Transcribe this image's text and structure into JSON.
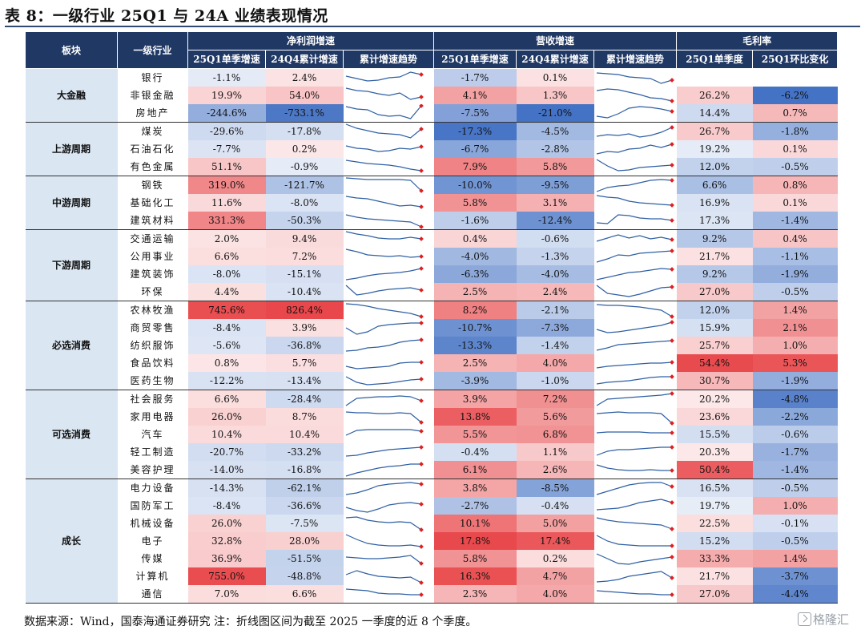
{
  "title": "表 8：一级行业 25Q1 与 24A 业绩表现情况",
  "header": {
    "sector": "板块",
    "industry": "一级行业",
    "profit_group": "净利润增速",
    "revenue_group": "营收增速",
    "margin_group": "毛利率",
    "sub": {
      "p_q1": "25Q1单季增速",
      "p_q4": "24Q4累计增速",
      "p_trend": "累计增速趋势",
      "r_q1": "25Q1单季增速",
      "r_q4": "24Q4累计增速",
      "r_trend": "累计增速趋势",
      "m_q1": "25Q1单季度",
      "m_chg": "25Q1环比变化"
    }
  },
  "colors": {
    "header_bg": "#203864",
    "sector_bg": "#dae6f2",
    "negative": "#4472c4",
    "positive": "#e8484b",
    "spark_line": "#2e5fa3",
    "spark_end": "#e02020"
  },
  "sectors": [
    {
      "name": "大金融",
      "rows": [
        {
          "ind": "银行",
          "p1": -1.1,
          "p2": 2.4,
          "ps": [
            0.6,
            0.45,
            0.3,
            0.35,
            0.5,
            0.55,
            0.85,
            0.7
          ],
          "r1": -1.7,
          "r2": 0.1,
          "rs": [
            0.8,
            0.75,
            0.7,
            0.55,
            0.5,
            0.45,
            0.15,
            0.35
          ],
          "m1": null,
          "m2": null
        },
        {
          "ind": "非银金融",
          "p1": 19.9,
          "p2": 54.0,
          "ps": [
            0.95,
            0.8,
            0.75,
            0.6,
            0.5,
            0.65,
            0.25,
            0.4
          ],
          "r1": 4.1,
          "r2": 1.3,
          "rs": [
            0.8,
            0.9,
            0.85,
            0.7,
            0.55,
            0.35,
            0.3,
            0.15
          ],
          "m1": 26.2,
          "m2": -6.2
        },
        {
          "ind": "房地产",
          "p1": -244.6,
          "p2": -733.1,
          "ps": [
            0.9,
            0.75,
            0.7,
            0.4,
            0.3,
            0.35,
            0.15,
            0.95
          ],
          "r1": -7.5,
          "r2": -21.0,
          "rs": [
            0.3,
            0.2,
            0.45,
            0.8,
            0.9,
            0.85,
            0.75,
            0.6
          ],
          "m1": 14.4,
          "m2": 0.7
        }
      ]
    },
    {
      "name": "上游周期",
      "rows": [
        {
          "ind": "煤炭",
          "p1": -29.6,
          "p2": -17.8,
          "ps": [
            0.95,
            0.7,
            0.55,
            0.4,
            0.35,
            0.3,
            0.1,
            0.65
          ],
          "r1": -17.3,
          "r2": -4.5,
          "rs": [
            0.2,
            0.3,
            0.25,
            0.35,
            0.15,
            0.25,
            0.45,
            0.75
          ],
          "m1": 26.7,
          "m2": -1.8
        },
        {
          "ind": "石油石化",
          "p1": -7.7,
          "p2": 0.2,
          "ps": [
            0.7,
            0.55,
            0.5,
            0.35,
            0.4,
            0.55,
            0.5,
            0.65
          ],
          "r1": -6.7,
          "r2": -2.8,
          "rs": [
            0.2,
            0.35,
            0.3,
            0.5,
            0.55,
            0.75,
            0.6,
            0.8
          ],
          "m1": 19.2,
          "m2": 0.1
        },
        {
          "ind": "有色金属",
          "p1": 51.1,
          "p2": -0.9,
          "ps": [
            0.9,
            0.8,
            0.7,
            0.65,
            0.6,
            0.5,
            0.35,
            0.25
          ],
          "r1": 7.9,
          "r2": 5.8,
          "rs": [
            0.95,
            0.55,
            0.25,
            0.3,
            0.45,
            0.5,
            0.55,
            0.6
          ],
          "m1": 12.0,
          "m2": -0.5
        }
      ]
    },
    {
      "name": "中游周期",
      "rows": [
        {
          "ind": "钢铁",
          "p1": 319.0,
          "p2": -121.7,
          "ps": [
            0.95,
            0.9,
            0.85,
            0.85,
            0.85,
            0.85,
            0.8,
            0.15
          ],
          "r1": -10.0,
          "r2": -9.5,
          "rs": [
            0.1,
            0.35,
            0.45,
            0.5,
            0.65,
            0.8,
            0.85,
            0.8
          ],
          "m1": 6.6,
          "m2": 0.8
        },
        {
          "ind": "基础化工",
          "p1": 11.6,
          "p2": -8.0,
          "ps": [
            0.9,
            0.8,
            0.75,
            0.6,
            0.45,
            0.3,
            0.35,
            0.25
          ],
          "r1": 5.8,
          "r2": 3.1,
          "rs": [
            0.95,
            0.85,
            0.8,
            0.6,
            0.5,
            0.45,
            0.4,
            0.35
          ],
          "m1": 16.9,
          "m2": 0.1
        },
        {
          "ind": "建筑材料",
          "p1": 331.3,
          "p2": -50.3,
          "ps": [
            0.85,
            0.7,
            0.6,
            0.55,
            0.5,
            0.45,
            0.4,
            0.1
          ],
          "r1": -1.6,
          "r2": -12.4,
          "rs": [
            0.35,
            0.3,
            0.85,
            0.8,
            0.65,
            0.6,
            0.6,
            0.5
          ],
          "m1": 17.3,
          "m2": -1.4
        }
      ]
    },
    {
      "name": "下游周期",
      "rows": [
        {
          "ind": "交通运输",
          "p1": 2.0,
          "p2": 9.4,
          "ps": [
            0.95,
            0.8,
            0.7,
            0.55,
            0.5,
            0.5,
            0.6,
            0.5
          ],
          "r1": 0.4,
          "r2": -0.6,
          "rs": [
            0.35,
            0.55,
            0.75,
            0.55,
            0.7,
            0.5,
            0.6,
            0.45
          ],
          "m1": 9.2,
          "m2": 0.4
        },
        {
          "ind": "公用事业",
          "p1": 6.6,
          "p2": 7.2,
          "ps": [
            0.95,
            0.8,
            0.6,
            0.55,
            0.5,
            0.55,
            0.45,
            0.5
          ],
          "r1": -4.0,
          "r2": -1.3,
          "rs": [
            0.15,
            0.35,
            0.6,
            0.55,
            0.7,
            0.75,
            0.8,
            0.85
          ],
          "m1": 21.7,
          "m2": -1.1
        },
        {
          "ind": "建筑装饰",
          "p1": -8.0,
          "p2": -15.1,
          "ps": [
            0.15,
            0.25,
            0.4,
            0.5,
            0.55,
            0.6,
            0.7,
            0.85
          ],
          "r1": -6.3,
          "r2": -4.0,
          "rs": [
            0.15,
            0.3,
            0.45,
            0.6,
            0.65,
            0.75,
            0.85,
            0.8
          ],
          "m1": 9.2,
          "m2": -1.9
        },
        {
          "ind": "环保",
          "p1": 4.4,
          "p2": -10.4,
          "ps": [
            0.9,
            0.3,
            0.4,
            0.55,
            0.65,
            0.7,
            0.75,
            0.6
          ],
          "r1": 2.5,
          "r2": 2.4,
          "rs": [
            0.9,
            0.4,
            0.3,
            0.2,
            0.35,
            0.55,
            0.75,
            0.8
          ],
          "m1": 27.0,
          "m2": -0.5
        }
      ]
    },
    {
      "name": "必选消费",
      "rows": [
        {
          "ind": "农林牧渔",
          "p1": 745.6,
          "p2": 826.4,
          "ps": [
            0.9,
            0.85,
            0.75,
            0.6,
            0.5,
            0.4,
            0.3,
            0.1
          ],
          "r1": 8.2,
          "r2": -2.1,
          "rs": [
            0.85,
            0.8,
            0.8,
            0.75,
            0.7,
            0.6,
            0.5,
            0.1
          ],
          "m1": 12.0,
          "m2": 1.4
        },
        {
          "ind": "商贸零售",
          "p1": -8.4,
          "p2": 3.9,
          "ps": [
            0.5,
            0.1,
            0.25,
            0.6,
            0.7,
            0.75,
            0.8,
            0.8
          ],
          "r1": -10.7,
          "r2": -7.3,
          "rs": [
            0.4,
            0.2,
            0.25,
            0.35,
            0.45,
            0.55,
            0.65,
            0.85
          ],
          "m1": 15.9,
          "m2": 2.1
        },
        {
          "ind": "纺织服饰",
          "p1": -5.6,
          "p2": -36.8,
          "ps": [
            0.15,
            0.2,
            0.35,
            0.4,
            0.5,
            0.7,
            0.8,
            0.85
          ],
          "r1": -13.3,
          "r2": -1.4,
          "rs": [
            0.2,
            0.35,
            0.55,
            0.6,
            0.65,
            0.7,
            0.75,
            0.8
          ],
          "m1": 25.7,
          "m2": 1.0
        },
        {
          "ind": "食品饮料",
          "p1": 0.8,
          "p2": 5.7,
          "ps": [
            0.3,
            0.15,
            0.2,
            0.25,
            0.3,
            0.5,
            0.55,
            0.55
          ],
          "r1": 2.5,
          "r2": 4.0,
          "rs": [
            0.2,
            0.3,
            0.35,
            0.4,
            0.45,
            0.5,
            0.5,
            0.55
          ],
          "m1": 54.4,
          "m2": 5.3
        },
        {
          "ind": "医药生物",
          "p1": -12.2,
          "p2": -13.4,
          "ps": [
            0.75,
            0.4,
            0.25,
            0.3,
            0.35,
            0.45,
            0.55,
            0.6
          ],
          "r1": -3.9,
          "r2": -1.0,
          "rs": [
            0.3,
            0.4,
            0.45,
            0.5,
            0.6,
            0.7,
            0.75,
            0.75
          ],
          "m1": 30.7,
          "m2": -1.9
        }
      ]
    },
    {
      "name": "可选消费",
      "rows": [
        {
          "ind": "社会服务",
          "p1": 6.6,
          "p2": -28.4,
          "ps": [
            0.1,
            0.55,
            0.6,
            0.65,
            0.65,
            0.7,
            0.65,
            0.4
          ],
          "r1": 3.9,
          "r2": 7.2,
          "rs": [
            0.1,
            0.5,
            0.55,
            0.6,
            0.65,
            0.7,
            0.75,
            0.85
          ],
          "m1": 20.2,
          "m2": -4.8
        },
        {
          "ind": "家用电器",
          "p1": 26.0,
          "p2": 8.7,
          "ps": [
            0.8,
            0.75,
            0.75,
            0.7,
            0.7,
            0.75,
            0.7,
            0.15
          ],
          "r1": 13.8,
          "r2": 5.6,
          "rs": [
            0.7,
            0.75,
            0.8,
            0.75,
            0.75,
            0.75,
            0.7,
            0.1
          ],
          "m1": 23.6,
          "m2": -2.2
        },
        {
          "ind": "汽车",
          "p1": 10.4,
          "p2": 10.4,
          "ps": [
            0.45,
            0.75,
            0.8,
            0.8,
            0.8,
            0.8,
            0.8,
            0.7
          ],
          "r1": 5.5,
          "r2": 6.8,
          "rs": [
            0.6,
            0.65,
            0.65,
            0.65,
            0.65,
            0.6,
            0.6,
            0.6
          ],
          "m1": 15.5,
          "m2": -0.6
        },
        {
          "ind": "轻工制造",
          "p1": -20.7,
          "p2": -33.2,
          "ps": [
            0.25,
            0.3,
            0.45,
            0.55,
            0.65,
            0.7,
            0.75,
            0.8
          ],
          "r1": -0.4,
          "r2": 1.1,
          "rs": [
            0.3,
            0.55,
            0.65,
            0.65,
            0.7,
            0.75,
            0.8,
            0.8
          ],
          "m1": 20.3,
          "m2": -1.7
        },
        {
          "ind": "美容护理",
          "p1": -14.0,
          "p2": -16.8,
          "ps": [
            0.1,
            0.3,
            0.45,
            0.6,
            0.7,
            0.75,
            0.85,
            0.85
          ],
          "r1": 6.1,
          "r2": 2.6,
          "rs": [
            0.8,
            0.6,
            0.5,
            0.45,
            0.45,
            0.5,
            0.45,
            0.45
          ],
          "m1": 50.4,
          "m2": -1.4
        }
      ]
    },
    {
      "name": "成长",
      "rows": [
        {
          "ind": "电力设备",
          "p1": -14.3,
          "p2": -62.1,
          "ps": [
            0.1,
            0.2,
            0.4,
            0.65,
            0.75,
            0.8,
            0.85,
            0.75
          ],
          "r1": 3.8,
          "r2": -8.5,
          "rs": [
            0.1,
            0.3,
            0.5,
            0.7,
            0.8,
            0.85,
            0.85,
            0.6
          ],
          "m1": 16.5,
          "m2": -0.5
        },
        {
          "ind": "国防军工",
          "p1": -8.4,
          "p2": -36.6,
          "ps": [
            0.4,
            0.2,
            0.1,
            0.3,
            0.55,
            0.65,
            0.7,
            0.6
          ],
          "r1": -2.7,
          "r2": -0.4,
          "rs": [
            0.25,
            0.3,
            0.35,
            0.5,
            0.7,
            0.8,
            0.9,
            0.7
          ],
          "m1": 19.7,
          "m2": 1.0
        },
        {
          "ind": "机械设备",
          "p1": 26.0,
          "p2": -7.5,
          "ps": [
            0.85,
            0.9,
            0.7,
            0.6,
            0.55,
            0.6,
            0.55,
            0.1
          ],
          "r1": 10.1,
          "r2": 5.0,
          "rs": [
            0.85,
            0.7,
            0.6,
            0.55,
            0.5,
            0.45,
            0.4,
            0.15
          ],
          "m1": 22.5,
          "m2": -0.1
        },
        {
          "ind": "电子",
          "p1": 32.8,
          "p2": 28.0,
          "ps": [
            0.9,
            0.6,
            0.35,
            0.25,
            0.2,
            0.2,
            0.25,
            0.15
          ],
          "r1": 17.8,
          "r2": 17.4,
          "rs": [
            0.85,
            0.5,
            0.3,
            0.25,
            0.2,
            0.2,
            0.2,
            0.2
          ],
          "m1": 15.2,
          "m2": -0.5
        },
        {
          "ind": "传媒",
          "p1": 36.9,
          "p2": -51.5,
          "ps": [
            0.6,
            0.55,
            0.5,
            0.5,
            0.55,
            0.6,
            0.7,
            0.2
          ],
          "r1": 5.8,
          "r2": 0.2,
          "rs": [
            0.8,
            0.5,
            0.2,
            0.15,
            0.3,
            0.4,
            0.5,
            0.6
          ],
          "m1": 33.3,
          "m2": 1.4
        },
        {
          "ind": "计算机",
          "p1": 755.0,
          "p2": -48.8,
          "ps": [
            0.6,
            0.85,
            0.65,
            0.5,
            0.45,
            0.4,
            0.45,
            0.1
          ],
          "r1": 16.3,
          "r2": 4.7,
          "rs": [
            0.15,
            0.2,
            0.3,
            0.5,
            0.6,
            0.7,
            0.8,
            0.4
          ],
          "m1": 21.7,
          "m2": -3.7
        },
        {
          "ind": "通信",
          "p1": 7.0,
          "p2": 6.6,
          "ps": [
            0.8,
            0.75,
            0.7,
            0.55,
            0.5,
            0.5,
            0.45,
            0.45
          ],
          "r1": 2.3,
          "r2": 4.0,
          "rs": [
            0.7,
            0.65,
            0.6,
            0.55,
            0.5,
            0.5,
            0.45,
            0.45
          ],
          "m1": 27.0,
          "m2": -4.4
        }
      ]
    }
  ],
  "footer": "数据来源：Wind，国泰海通证券研究  注：折线图区间为截至 2025 一季度的近 8 个季度。",
  "watermark": "格隆汇"
}
